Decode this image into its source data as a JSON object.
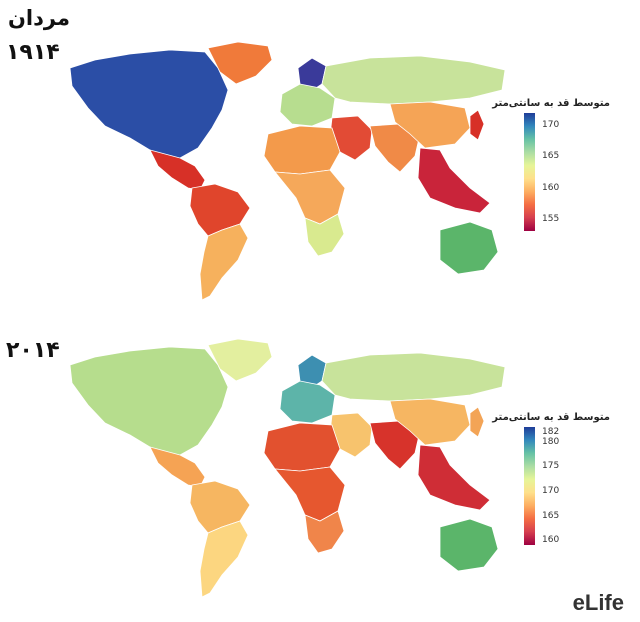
{
  "title": "مردان",
  "logo": "eLife",
  "maps": [
    {
      "year": "۱۹۱۴",
      "legend_title": "متوسط قد به سانتی‌متر",
      "scale_min": 153,
      "scale_max": 172,
      "ticks": [
        "170",
        "165",
        "160",
        "155"
      ],
      "tick_values": [
        170,
        165,
        160,
        155
      ],
      "colors": {
        "north_america": "#2b4ea6",
        "central_america": "#d73027",
        "south_america_north": "#e0452c",
        "south_america_south": "#f6b15d",
        "greenland": "#f07a3a",
        "scandinavia": "#3a3a9a",
        "europe": "#b7dd8f",
        "russia": "#c8e39b",
        "middle_east": "#e24b35",
        "africa_north": "#f39a4b",
        "africa_central": "#f5a85a",
        "africa_south": "#d9ea8f",
        "south_asia": "#f08a47",
        "china": "#f5a456",
        "se_asia": "#c9243a",
        "japan": "#d73027",
        "australia": "#5bb56a"
      }
    },
    {
      "year": "۲۰۱۴",
      "legend_title": "متوسط قد به سانتی‌متر",
      "scale_min": 159,
      "scale_max": 183,
      "ticks": [
        "182",
        "180",
        "175",
        "170",
        "165",
        "160"
      ],
      "tick_values": [
        182,
        180,
        175,
        170,
        165,
        160
      ],
      "colors": {
        "north_america": "#b6dd8d",
        "central_america": "#f5a354",
        "south_america_north": "#f6b661",
        "south_america_south": "#fcd680",
        "greenland": "#e3ef9f",
        "scandinavia": "#3d8fb1",
        "europe": "#5db4a9",
        "russia": "#c8e39b",
        "middle_east": "#f7c36d",
        "africa_north": "#e2512f",
        "africa_central": "#e6572f",
        "africa_south": "#f0854a",
        "south_asia": "#d7332b",
        "china": "#f6b662",
        "se_asia": "#cf2d36",
        "japan": "#f3a456",
        "australia": "#5bb56a"
      }
    }
  ],
  "gradient": [
    "#9e0142",
    "#d53e4f",
    "#f46d43",
    "#fdae61",
    "#fee08b",
    "#e6f598",
    "#abdda4",
    "#66c2a5",
    "#3288bd",
    "#1f3d99"
  ]
}
